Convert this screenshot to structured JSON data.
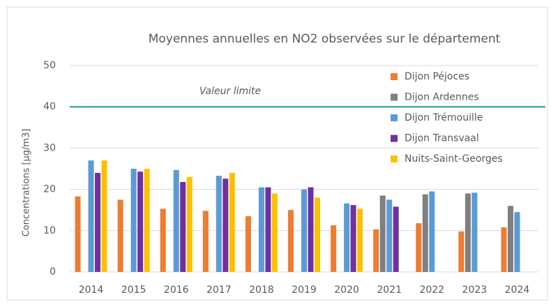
{
  "chart_data": {
    "type": "bar",
    "title": "Moyennes annuelles en NO2 observées sur le département",
    "y_label": "Concentrations [µg/m3]",
    "categories": [
      "2014",
      "2015",
      "2016",
      "2017",
      "2018",
      "2019",
      "2020",
      "2021",
      "2022",
      "2023",
      "2024"
    ],
    "series": [
      {
        "name": "Dijon Péjoces",
        "color": "#ed7d31",
        "values": [
          18.3,
          17.5,
          15.3,
          14.8,
          13.5,
          15,
          11.3,
          10.3,
          11.8,
          9.8,
          10.8
        ]
      },
      {
        "name": "Dijon Ardennes",
        "color": "#7f7f7f",
        "values": [
          null,
          null,
          null,
          null,
          null,
          null,
          null,
          18.5,
          18.8,
          19,
          16
        ]
      },
      {
        "name": "Dijon Trémouille",
        "color": "#5b9bd5",
        "values": [
          27,
          25,
          24.7,
          23.3,
          20.5,
          20,
          16.6,
          17.5,
          19.5,
          19.2,
          14.5
        ]
      },
      {
        "name": "Dijon Transvaal",
        "color": "#7030a0",
        "values": [
          24,
          24.3,
          21.8,
          22.6,
          20.5,
          20.5,
          16.2,
          15.8,
          null,
          null,
          null
        ]
      },
      {
        "name": "Nuits-Saint-Georges",
        "color": "#ffc000",
        "values": [
          27,
          25,
          23,
          24,
          19,
          18,
          15.3,
          null,
          null,
          null,
          null
        ]
      }
    ],
    "limit": {
      "value": 40,
      "label": "Valeur limite",
      "color": "#159f97"
    },
    "ylim": [
      0,
      50
    ],
    "yticks": [
      0,
      10,
      20,
      30,
      40,
      50
    ],
    "grid": true
  }
}
